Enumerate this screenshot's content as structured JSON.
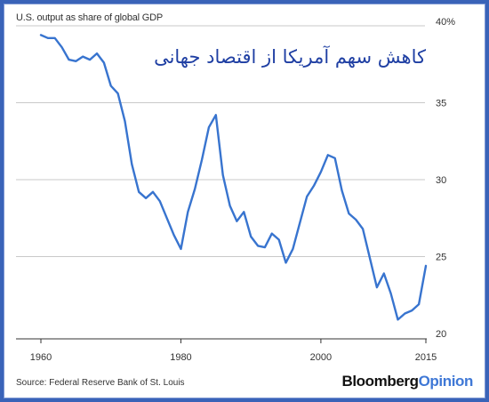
{
  "header": {
    "subtitle": "U.S. output as share of global GDP",
    "title": "کاهش سهم آمریکا از اقتصاد جهانی"
  },
  "footer": {
    "source": "Source: Federal Reserve Bank of St. Louis",
    "brand_primary": "Bloomberg",
    "brand_secondary": "Opinion"
  },
  "colors": {
    "line": "#3874cf",
    "title": "#1f3fa3",
    "frame": "#3a63b8",
    "brand_accent": "#3f78d6"
  },
  "chart_data": {
    "type": "line",
    "title": "کاهش سهم آمریکا از اقتصاد جهانی",
    "subtitle": "U.S. output as share of global GDP",
    "xlabel": "",
    "ylabel": "",
    "xlim": [
      1960,
      2015
    ],
    "ylim": [
      20,
      40
    ],
    "x_ticks": [
      1960,
      1980,
      2000,
      2015
    ],
    "x_tick_labels": [
      "1960",
      "1980",
      "2000",
      "2015"
    ],
    "y_ticks": [
      20,
      25,
      30,
      35,
      40
    ],
    "y_tick_labels": [
      "20",
      "25",
      "30",
      "35",
      "40%"
    ],
    "grid": {
      "horizontal": true,
      "vertical": false
    },
    "legend": "none",
    "series": [
      {
        "x": [
          1960,
          1961,
          1962,
          1963,
          1964,
          1965,
          1966,
          1967,
          1968,
          1969,
          1970,
          1971,
          1972,
          1973,
          1974,
          1975,
          1976,
          1977,
          1978,
          1979,
          1980,
          1981,
          1982,
          1983,
          1984,
          1985,
          1986,
          1987,
          1988,
          1989,
          1990,
          1991,
          1992,
          1993,
          1994,
          1995,
          1996,
          1997,
          1998,
          1999,
          2000,
          2001,
          2002,
          2003,
          2004,
          2005,
          2006,
          2007,
          2008,
          2009,
          2010,
          2011,
          2012,
          2013,
          2014,
          2015
        ],
        "values": [
          39.4,
          39.2,
          39.2,
          38.6,
          37.8,
          37.7,
          38.0,
          37.8,
          38.2,
          37.6,
          36.1,
          35.6,
          33.8,
          31.0,
          29.2,
          28.8,
          29.2,
          28.6,
          27.5,
          26.4,
          25.5,
          27.9,
          29.4,
          31.3,
          33.4,
          34.2,
          30.3,
          28.3,
          27.3,
          27.9,
          26.3,
          25.7,
          25.6,
          26.5,
          26.1,
          24.6,
          25.5,
          27.2,
          28.9,
          29.6,
          30.5,
          31.6,
          31.4,
          29.3,
          27.8,
          27.4,
          26.8,
          24.9,
          23.0,
          23.9,
          22.6,
          20.9,
          21.3,
          21.5,
          21.9,
          24.4
        ]
      }
    ]
  }
}
